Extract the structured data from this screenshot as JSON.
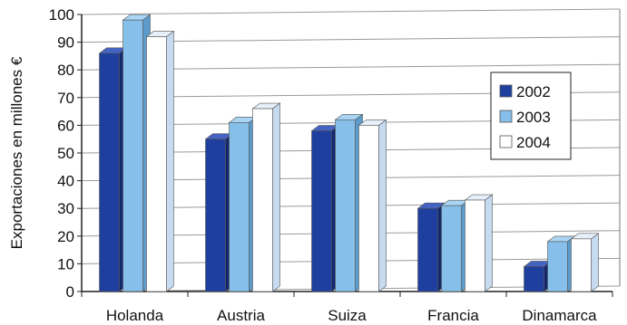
{
  "chart_data": {
    "type": "bar",
    "title": "",
    "xlabel": "",
    "ylabel": "Exportaciones en millones €",
    "ylim": [
      0,
      100
    ],
    "yticks": [
      0,
      10,
      20,
      30,
      40,
      50,
      60,
      70,
      80,
      90,
      100
    ],
    "categories": [
      "Holanda",
      "Austria",
      "Suiza",
      "Francia",
      "Dinamarca"
    ],
    "series": [
      {
        "name": "2002",
        "values": [
          86,
          55,
          58,
          30,
          9
        ],
        "color": "#1f3f9f",
        "side_color": "#13286e",
        "top_color": "#4563c2"
      },
      {
        "name": "2003",
        "values": [
          98,
          61,
          62,
          31,
          18
        ],
        "color": "#86bfe9",
        "side_color": "#5b9ccc",
        "top_color": "#a9d4f3"
      },
      {
        "name": "2004",
        "values": [
          92,
          66,
          60,
          33,
          19
        ],
        "color": "#ffffff",
        "side_color": "#c6dbf0",
        "top_color": "#e6f0fa"
      }
    ],
    "legend_position": "right",
    "grid": true,
    "style": "3d-clustered-column"
  }
}
